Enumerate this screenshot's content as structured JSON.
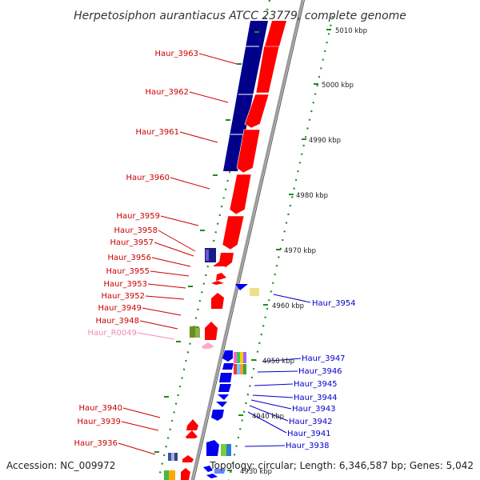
{
  "title": "Herpetosiphon aurantiacus ATCC 23779, complete genome",
  "accession": "Accession: NC_009972",
  "summary": "Topology: circular; Length: 6,346,587 bp; Genes: 5,042",
  "colors": {
    "forward_gene": "#ff0000",
    "reverse_gene": "#0000ee",
    "rna_gene": "#ffaacc",
    "forward_label": "#cc0000",
    "reverse_label": "#0000cc",
    "rna_label": "#ee88bb",
    "tick": "#228b22",
    "track_dark": "#00008b"
  },
  "left_labels": [
    {
      "id": "Haur_3963",
      "kind": "forward"
    },
    {
      "id": "Haur_3962",
      "kind": "forward"
    },
    {
      "id": "Haur_3961",
      "kind": "forward"
    },
    {
      "id": "Haur_3960",
      "kind": "forward"
    },
    {
      "id": "Haur_3959",
      "kind": "forward"
    },
    {
      "id": "Haur_3958",
      "kind": "forward"
    },
    {
      "id": "Haur_3957",
      "kind": "forward"
    },
    {
      "id": "Haur_3956",
      "kind": "forward"
    },
    {
      "id": "Haur_3955",
      "kind": "forward"
    },
    {
      "id": "Haur_3953",
      "kind": "forward"
    },
    {
      "id": "Haur_3952",
      "kind": "forward"
    },
    {
      "id": "Haur_3949",
      "kind": "forward"
    },
    {
      "id": "Haur_3948",
      "kind": "forward"
    },
    {
      "id": "Haur_R0049",
      "kind": "rna"
    },
    {
      "id": "Haur_3940",
      "kind": "forward"
    },
    {
      "id": "Haur_3939",
      "kind": "forward"
    },
    {
      "id": "Haur_3936",
      "kind": "forward"
    }
  ],
  "right_labels": [
    {
      "id": "Haur_3954",
      "kind": "reverse"
    },
    {
      "id": "Haur_3947",
      "kind": "reverse"
    },
    {
      "id": "Haur_3946",
      "kind": "reverse"
    },
    {
      "id": "Haur_3945",
      "kind": "reverse"
    },
    {
      "id": "Haur_3944",
      "kind": "reverse"
    },
    {
      "id": "Haur_3943",
      "kind": "reverse"
    },
    {
      "id": "Haur_3942",
      "kind": "reverse"
    },
    {
      "id": "Haur_3941",
      "kind": "reverse"
    },
    {
      "id": "Haur_3938",
      "kind": "reverse"
    }
  ],
  "scale_labels": [
    "5010 kbp",
    "5000 kbp",
    "4990 kbp",
    "4980 kbp",
    "4970 kbp",
    "4960 kbp",
    "4950 kbp",
    "4940 kbp",
    "4930 kbp"
  ]
}
